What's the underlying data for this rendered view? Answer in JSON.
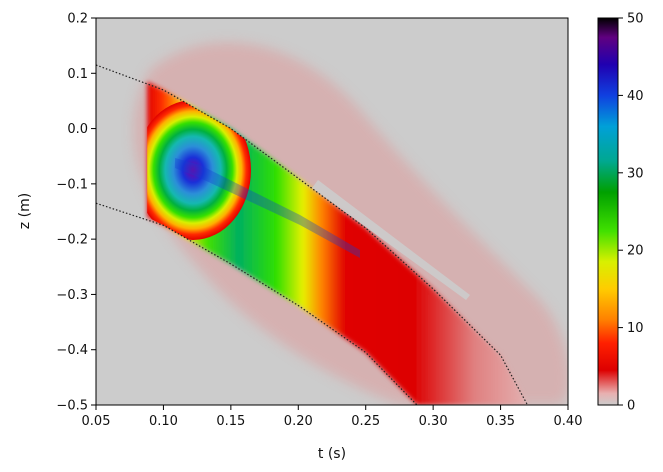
{
  "chart_data": {
    "type": "heatmap",
    "title": "",
    "xlabel": "t (s)",
    "ylabel": "z (m)",
    "xlim": [
      0.05,
      0.4
    ],
    "ylim": [
      -0.5,
      0.2
    ],
    "x_ticks": [
      "0.05",
      "0.10",
      "0.15",
      "0.20",
      "0.25",
      "0.30",
      "0.35",
      "0.40"
    ],
    "y_ticks": [
      "0.2",
      "0.1",
      "0.0",
      "−0.1",
      "−0.2",
      "−0.3",
      "−0.4",
      "−0.5"
    ],
    "colorbar": {
      "range": [
        0,
        50
      ],
      "ticks": [
        "0",
        "10",
        "20",
        "30",
        "40",
        "50"
      ],
      "colormap": "nipy_spectral"
    },
    "grid": false,
    "background_color": "#cccccc",
    "peak": {
      "t": 0.125,
      "z": -0.075,
      "value": 48
    },
    "boundary_upper": [
      [
        0.05,
        0.115
      ],
      [
        0.1,
        0.07
      ],
      [
        0.15,
        0.0
      ],
      [
        0.2,
        -0.09
      ],
      [
        0.25,
        -0.18
      ],
      [
        0.3,
        -0.29
      ],
      [
        0.35,
        -0.41
      ],
      [
        0.37,
        -0.5
      ]
    ],
    "boundary_lower": [
      [
        0.05,
        -0.135
      ],
      [
        0.1,
        -0.175
      ],
      [
        0.15,
        -0.245
      ],
      [
        0.2,
        -0.32
      ],
      [
        0.25,
        -0.405
      ],
      [
        0.288,
        -0.5
      ]
    ]
  }
}
